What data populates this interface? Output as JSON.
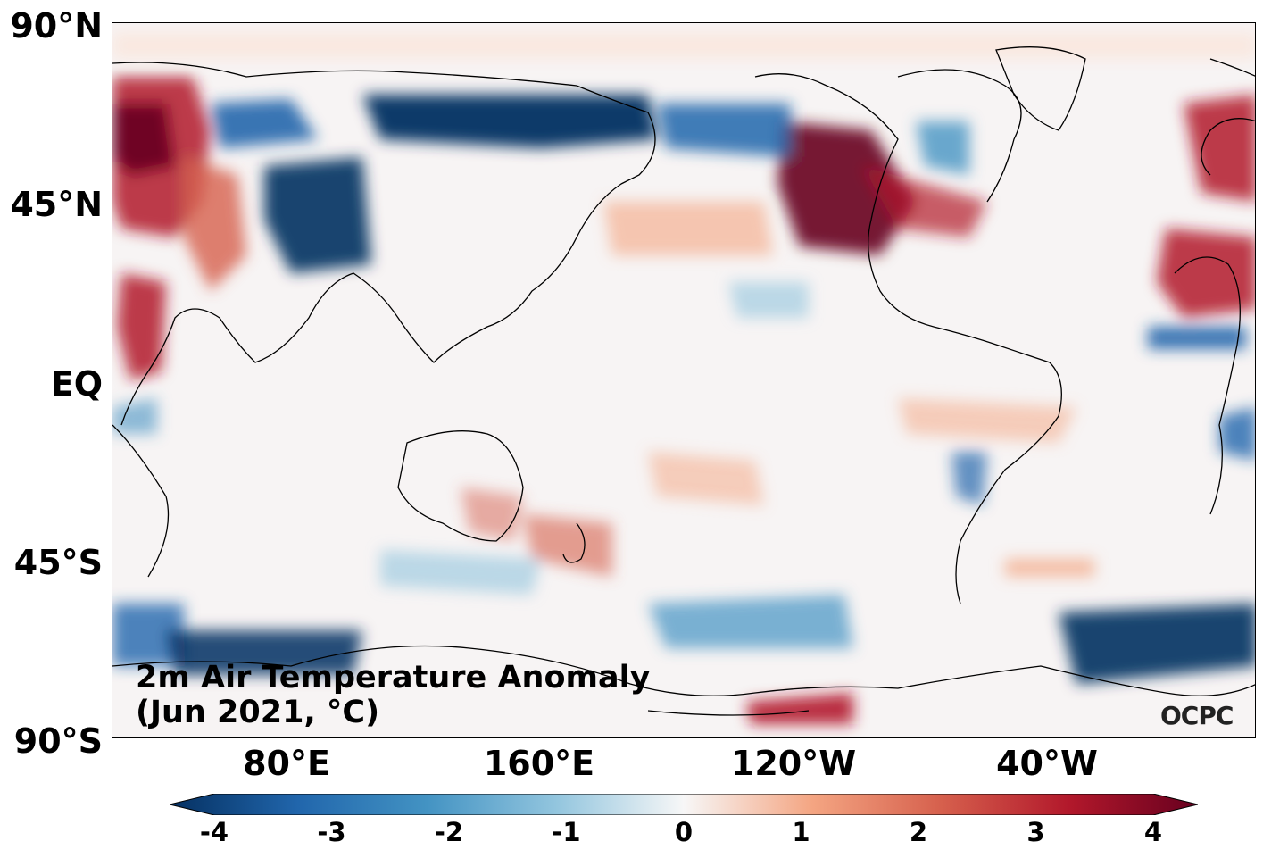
{
  "map": {
    "title_line1": "2m Air Temperature Anomaly",
    "title_line2": "(Jun 2021, °C)",
    "logo_text": "OCPC",
    "lat_labels": [
      "90°N",
      "45°N",
      "EQ",
      "45°S",
      "90°S"
    ],
    "lon_labels": [
      "80°E",
      "160°E",
      "120°W",
      "40°W"
    ],
    "colorbar": {
      "ticks": [
        "-4",
        "-3",
        "-2",
        "-1",
        "0",
        "1",
        "2",
        "3",
        "4"
      ],
      "min": -4,
      "max": 4,
      "extend": "both",
      "colormap": [
        "#053061",
        "#2166ac",
        "#4393c3",
        "#92c5de",
        "#f7f7f7",
        "#f4a582",
        "#d6604d",
        "#b2182b",
        "#67001f"
      ]
    }
  }
}
